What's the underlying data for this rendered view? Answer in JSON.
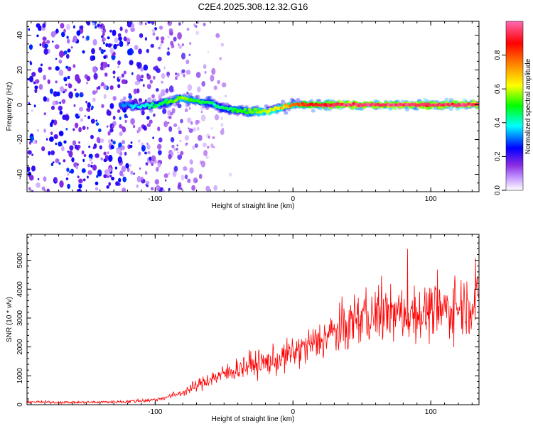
{
  "title": "C2E4.2025.308.12.32.G16",
  "chart_data": [
    {
      "type": "heatmap",
      "name": "spectrogram",
      "xlabel": "Height of straight line (km)",
      "ylabel": "Frequency (Hz)",
      "xlim": [
        -193,
        135
      ],
      "ylim": [
        -50,
        48
      ],
      "xticks": [
        -100,
        0,
        100
      ],
      "yticks": [
        -40,
        -20,
        0,
        20,
        40
      ],
      "colorbar": {
        "label": "Normalized spectral amplitude",
        "range": [
          0.0,
          1.0
        ],
        "ticks": [
          0.0,
          0.2,
          0.4,
          0.6,
          0.8
        ],
        "colors": [
          "#ffffff",
          "#8a2be2",
          "#0000ff",
          "#00ffff",
          "#00ff00",
          "#ffff00",
          "#ff8000",
          "#ff0000",
          "#ff69b4"
        ]
      },
      "ridge": {
        "x": [
          -125,
          -110,
          -100,
          -90,
          -80,
          -70,
          -60,
          -50,
          -40,
          -30,
          -20,
          -10,
          0,
          10,
          20,
          40,
          60,
          80,
          100,
          120,
          135
        ],
        "frequency": [
          0,
          -1,
          0,
          2,
          4,
          2,
          1,
          -2,
          -3,
          -4,
          -4,
          -2,
          0,
          0,
          0,
          0,
          0,
          0,
          0,
          0,
          0
        ],
        "amplitude": [
          0.3,
          0.35,
          0.45,
          0.5,
          0.55,
          0.5,
          0.45,
          0.45,
          0.5,
          0.55,
          0.6,
          0.65,
          0.75,
          0.85,
          0.9,
          0.95,
          0.95,
          0.95,
          0.95,
          0.95,
          0.95
        ]
      },
      "noise_region": {
        "x_range": [
          -193,
          -80
        ],
        "amplitude_max": 0.25
      }
    },
    {
      "type": "line",
      "name": "snr",
      "xlabel": "Height of straight line (km)",
      "ylabel": "SNR (10 * v/v)",
      "xlim": [
        -193,
        135
      ],
      "ylim": [
        0,
        5900
      ],
      "xticks": [
        -100,
        0,
        100
      ],
      "yticks": [
        0,
        1000,
        2000,
        3000,
        4000,
        5000
      ],
      "color": "#ff0000",
      "series": [
        {
          "name": "SNR",
          "x": [
            -193,
            -180,
            -160,
            -140,
            -120,
            -100,
            -90,
            -80,
            -70,
            -60,
            -50,
            -40,
            -30,
            -20,
            -10,
            0,
            10,
            20,
            30,
            40,
            45,
            60,
            80,
            100,
            115,
            125,
            135
          ],
          "values": [
            100,
            90,
            80,
            90,
            110,
            170,
            280,
            420,
            650,
            900,
            1050,
            1250,
            1400,
            1450,
            1550,
            1800,
            2000,
            2250,
            2500,
            2700,
            2950,
            3100,
            3150,
            3200,
            3300,
            3500,
            3600
          ]
        }
      ]
    }
  ]
}
